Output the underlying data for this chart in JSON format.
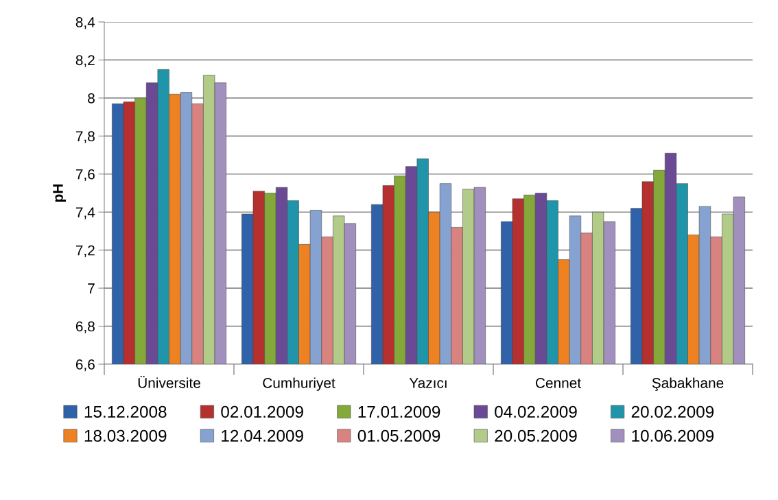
{
  "chart_data": {
    "type": "bar",
    "ylabel": "pH",
    "categories": [
      "Üniversite",
      "Cumhuriyet",
      "Yazıcı",
      "Cennet",
      "Şabakhane"
    ],
    "series": [
      {
        "name": "15.12.2008",
        "color": "#2f62a8",
        "values": [
          7.97,
          7.39,
          7.44,
          7.35,
          7.42
        ]
      },
      {
        "name": "02.01.2009",
        "color": "#b5302f",
        "values": [
          7.98,
          7.51,
          7.54,
          7.47,
          7.56
        ]
      },
      {
        "name": "17.01.2009",
        "color": "#84a83a",
        "values": [
          8.0,
          7.5,
          7.59,
          7.49,
          7.62
        ]
      },
      {
        "name": "04.02.2009",
        "color": "#6a4a94",
        "values": [
          8.08,
          7.53,
          7.64,
          7.5,
          7.71
        ]
      },
      {
        "name": "20.02.2009",
        "color": "#2095aa",
        "values": [
          8.15,
          7.46,
          7.68,
          7.46,
          7.55
        ]
      },
      {
        "name": "18.03.2009",
        "color": "#ee8222",
        "values": [
          8.02,
          7.23,
          7.4,
          7.15,
          7.28
        ]
      },
      {
        "name": "12.04.2009",
        "color": "#86a2d0",
        "values": [
          8.03,
          7.41,
          7.55,
          7.38,
          7.43
        ]
      },
      {
        "name": "01.05.2009",
        "color": "#d88380",
        "values": [
          7.97,
          7.27,
          7.32,
          7.29,
          7.27
        ]
      },
      {
        "name": "20.05.2009",
        "color": "#b2cb88",
        "values": [
          8.12,
          7.38,
          7.52,
          7.4,
          7.39
        ]
      },
      {
        "name": "10.06.2009",
        "color": "#a18fbd",
        "values": [
          8.08,
          7.34,
          7.53,
          7.35,
          7.48
        ]
      }
    ],
    "ylim": [
      6.6,
      8.4
    ],
    "yticks": [
      {
        "value": 6.6,
        "label": "6,6"
      },
      {
        "value": 6.8,
        "label": "6,8"
      },
      {
        "value": 7,
        "label": "7"
      },
      {
        "value": 7.2,
        "label": "7,2"
      },
      {
        "value": 7.4,
        "label": "7,4"
      },
      {
        "value": 7.6,
        "label": "7,6"
      },
      {
        "value": 7.8,
        "label": "7,8"
      },
      {
        "value": 8,
        "label": "8"
      },
      {
        "value": 8.2,
        "label": "8,2"
      },
      {
        "value": 8.4,
        "label": "8,4"
      }
    ],
    "grid": "y",
    "legend": "bottom"
  }
}
